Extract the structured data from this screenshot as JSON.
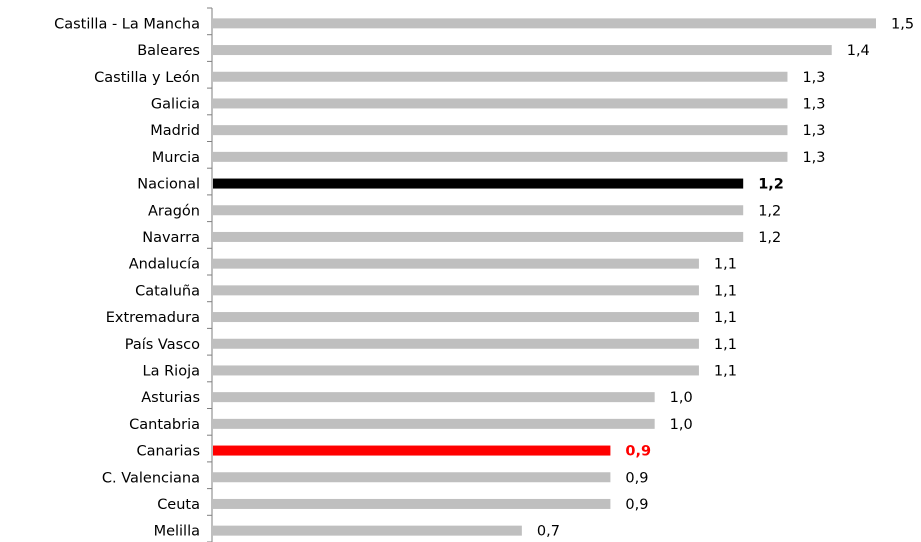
{
  "chart_data": {
    "type": "bar",
    "orientation": "horizontal",
    "categories": [
      "Castilla - La Mancha",
      "Baleares",
      "Castilla y León",
      "Galicia",
      "Madrid",
      "Murcia",
      "Nacional",
      "Aragón",
      "Navarra",
      "Andalucía",
      "Cataluña",
      "Extremadura",
      "País Vasco",
      "La Rioja",
      "Asturias",
      "Cantabria",
      "Canarias",
      "C. Valenciana",
      "Ceuta",
      "Melilla"
    ],
    "values": [
      1.5,
      1.4,
      1.3,
      1.3,
      1.3,
      1.3,
      1.2,
      1.2,
      1.2,
      1.1,
      1.1,
      1.1,
      1.1,
      1.1,
      1.0,
      1.0,
      0.9,
      0.9,
      0.9,
      0.7
    ],
    "data_labels": [
      "1,5",
      "1,4",
      "1,3",
      "1,3",
      "1,3",
      "1,3",
      "1,2",
      "1,2",
      "1,2",
      "1,1",
      "1,1",
      "1,1",
      "1,1",
      "1,1",
      "1,0",
      "1,0",
      "0,9",
      "0,9",
      "0,9",
      "0,7"
    ],
    "highlight": {
      "Nacional": "#000000",
      "Canarias": "#ff0000"
    },
    "default_color": "#bfbfbf",
    "xlim": [
      0,
      1.5
    ],
    "grid": false,
    "legend": "none",
    "title": "",
    "xlabel": "",
    "ylabel": ""
  }
}
